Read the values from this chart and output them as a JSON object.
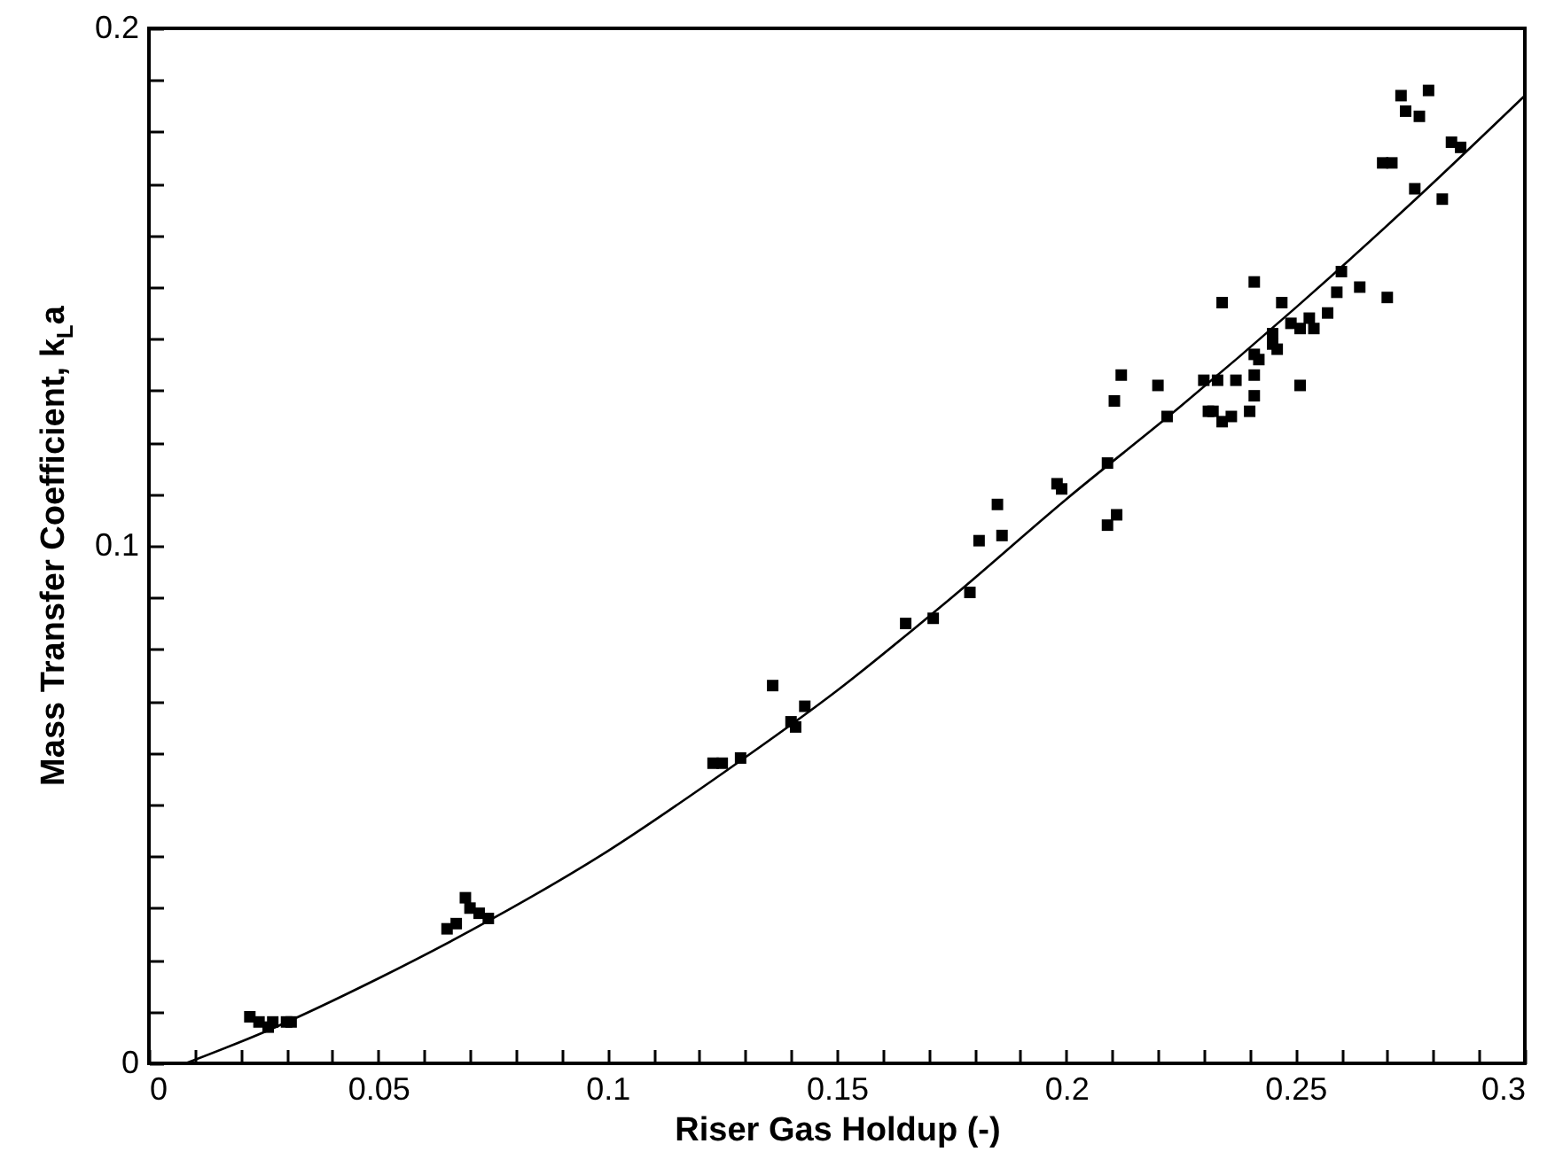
{
  "chart_data": {
    "type": "scatter",
    "xlabel": "Riser Gas Holdup (-)",
    "ylabel": "Mass Transfer Coefficient, k$_{L}$a",
    "xlim": [
      0,
      0.3
    ],
    "ylim": [
      0,
      0.2
    ],
    "xticks": [
      0,
      {
        "value": 0.01,
        "label": null
      },
      {
        "value": 0.02,
        "label": null
      },
      {
        "value": 0.03,
        "label": null
      },
      {
        "value": 0.04,
        "label": null
      },
      0.05,
      {
        "value": 0.06,
        "label": null
      },
      {
        "value": 0.07,
        "label": null
      },
      {
        "value": 0.08,
        "label": null
      },
      {
        "value": 0.09,
        "label": null
      },
      0.1,
      {
        "value": 0.11,
        "label": null
      },
      {
        "value": 0.12,
        "label": null
      },
      {
        "value": 0.13,
        "label": null
      },
      {
        "value": 0.14,
        "label": null
      },
      0.15,
      {
        "value": 0.16,
        "label": null
      },
      {
        "value": 0.17,
        "label": null
      },
      {
        "value": 0.18,
        "label": null
      },
      {
        "value": 0.19,
        "label": null
      },
      0.2,
      {
        "value": 0.21,
        "label": null
      },
      {
        "value": 0.22,
        "label": null
      },
      {
        "value": 0.23,
        "label": null
      },
      {
        "value": 0.24,
        "label": null
      },
      0.25,
      {
        "value": 0.26,
        "label": null
      },
      {
        "value": 0.27,
        "label": null
      },
      {
        "value": 0.28,
        "label": null
      },
      {
        "value": 0.29,
        "label": null
      },
      0.3
    ],
    "yticks": [
      0,
      {
        "value": 0.01,
        "label": null
      },
      {
        "value": 0.02,
        "label": null
      },
      {
        "value": 0.03,
        "label": null
      },
      {
        "value": 0.04,
        "label": null
      },
      {
        "value": 0.05,
        "label": null
      },
      {
        "value": 0.06,
        "label": null
      },
      {
        "value": 0.07,
        "label": null
      },
      {
        "value": 0.08,
        "label": null
      },
      {
        "value": 0.09,
        "label": null
      },
      0.1,
      {
        "value": 0.11,
        "label": null
      },
      {
        "value": 0.12,
        "label": null
      },
      {
        "value": 0.13,
        "label": null
      },
      {
        "value": 0.14,
        "label": null
      },
      {
        "value": 0.15,
        "label": null
      },
      {
        "value": 0.16,
        "label": null
      },
      {
        "value": 0.17,
        "label": null
      },
      {
        "value": 0.18,
        "label": null
      },
      {
        "value": 0.19,
        "label": null
      },
      0.2
    ],
    "grid": false,
    "marker": "square",
    "series": [
      {
        "color": "#000000",
        "x": [
          0.022,
          0.024,
          0.026,
          0.027,
          0.03,
          0.031,
          0.065,
          0.067,
          0.069,
          0.07,
          0.072,
          0.074,
          0.123,
          0.125,
          0.129,
          0.136,
          0.14,
          0.141,
          0.143,
          0.165,
          0.171,
          0.179,
          0.181,
          0.185,
          0.186,
          0.198,
          0.199,
          0.209,
          0.209,
          0.211,
          0.2105,
          0.212,
          0.22,
          0.222,
          0.23,
          0.231,
          0.232,
          0.233,
          0.234,
          0.234,
          0.236,
          0.237,
          0.24,
          0.241,
          0.241,
          0.241,
          0.241,
          0.242,
          0.245,
          0.245,
          0.246,
          0.247,
          0.249,
          0.251,
          0.251,
          0.253,
          0.254,
          0.257,
          0.259,
          0.26,
          0.264,
          0.269,
          0.271,
          0.27,
          0.273,
          0.274,
          0.276,
          0.277,
          0.279,
          0.282,
          0.284,
          0.286
        ],
        "values": [
          0.009,
          0.008,
          0.007,
          0.008,
          0.008,
          0.008,
          0.026,
          0.027,
          0.032,
          0.03,
          0.029,
          0.028,
          0.058,
          0.058,
          0.059,
          0.073,
          0.066,
          0.065,
          0.069,
          0.085,
          0.086,
          0.091,
          0.101,
          0.108,
          0.102,
          0.112,
          0.111,
          0.116,
          0.104,
          0.106,
          0.128,
          0.133,
          0.131,
          0.125,
          0.132,
          0.126,
          0.126,
          0.132,
          0.147,
          0.124,
          0.125,
          0.132,
          0.126,
          0.151,
          0.129,
          0.137,
          0.133,
          0.136,
          0.141,
          0.139,
          0.138,
          0.147,
          0.143,
          0.131,
          0.142,
          0.144,
          0.142,
          0.145,
          0.149,
          0.153,
          0.15,
          0.174,
          0.174,
          0.148,
          0.187,
          0.184,
          0.169,
          0.183,
          0.188,
          0.167,
          0.178,
          0.177
        ]
      },
      {
        "type": "line",
        "color": "#000000",
        "marker": "none",
        "x": [
          0.008,
          0.025,
          0.05,
          0.075,
          0.1,
          0.125,
          0.15,
          0.175,
          0.2,
          0.225,
          0.25,
          0.275,
          0.3
        ],
        "values": [
          0,
          0.006,
          0.0164,
          0.028,
          0.041,
          0.056,
          0.072,
          0.09,
          0.109,
          0.127,
          0.146,
          0.166,
          0.187
        ]
      }
    ]
  }
}
